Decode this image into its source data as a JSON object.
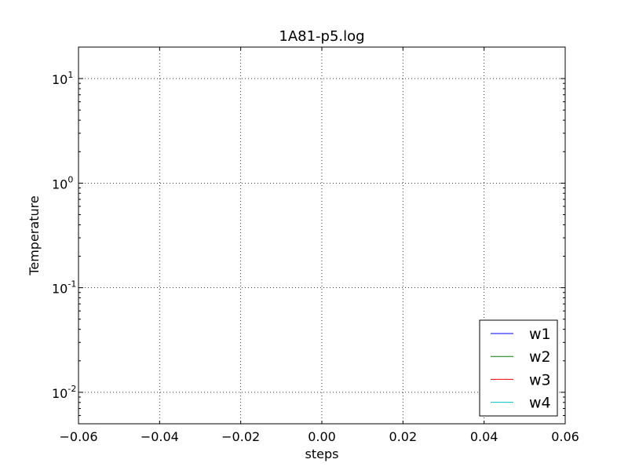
{
  "chart_data": {
    "type": "line",
    "title": "1A81-p5.log",
    "xlabel": "steps",
    "ylabel": "Temperature",
    "xlim": [
      -0.06,
      0.06
    ],
    "xticks": [
      -0.06,
      -0.04,
      -0.02,
      0.0,
      0.02,
      0.04,
      0.06
    ],
    "xtick_labels": [
      "−0.06",
      "−0.04",
      "−0.02",
      "0.00",
      "0.02",
      "0.04",
      "0.06"
    ],
    "yscale": "log",
    "ylim": [
      0.005,
      20
    ],
    "yticks": [
      0.01,
      0.1,
      1,
      10
    ],
    "ytick_labels": [
      {
        "base": "10",
        "exp": "-2"
      },
      {
        "base": "10",
        "exp": "-1"
      },
      {
        "base": "10",
        "exp": "0"
      },
      {
        "base": "10",
        "exp": "1"
      }
    ],
    "grid": true,
    "legend_position": "lower-right",
    "series": [
      {
        "name": "w1",
        "color": "#0000ff",
        "x": [],
        "y": []
      },
      {
        "name": "w2",
        "color": "#008000",
        "x": [],
        "y": []
      },
      {
        "name": "w3",
        "color": "#ff0000",
        "x": [],
        "y": []
      },
      {
        "name": "w4",
        "color": "#00bfbf",
        "x": [],
        "y": []
      }
    ]
  }
}
